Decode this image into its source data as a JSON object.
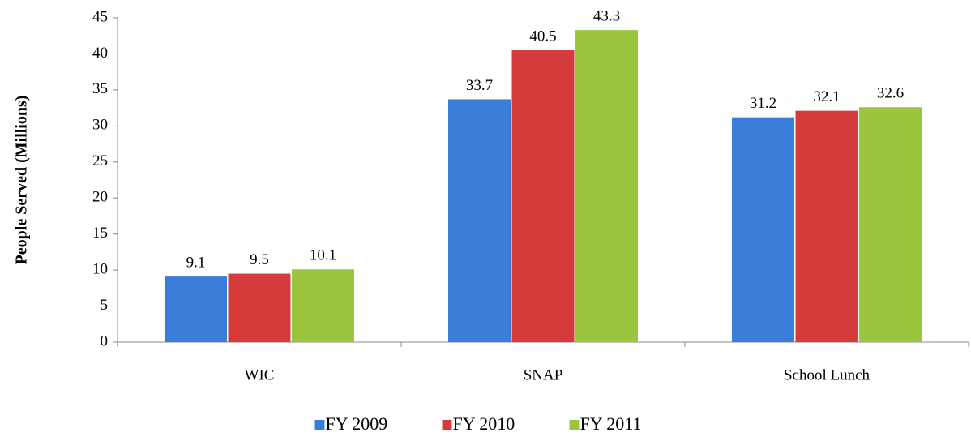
{
  "chart_data": {
    "type": "bar",
    "y_label": "People Served (Millions)",
    "categories": [
      "WIC",
      "SNAP",
      "School Lunch"
    ],
    "series": [
      {
        "name": "FY 2009",
        "color": "#3a7dd8",
        "values": [
          9.1,
          33.7,
          31.2
        ]
      },
      {
        "name": "FY 2010",
        "color": "#d63b3b",
        "values": [
          9.5,
          40.5,
          32.1
        ]
      },
      {
        "name": "FY 2011",
        "color": "#9bc53d",
        "values": [
          10.1,
          43.3,
          32.6
        ]
      }
    ],
    "ylim": [
      0,
      45
    ],
    "yticks": [
      0,
      5,
      10,
      15,
      20,
      25,
      30,
      35,
      40,
      45
    ],
    "legend": "bottom"
  }
}
